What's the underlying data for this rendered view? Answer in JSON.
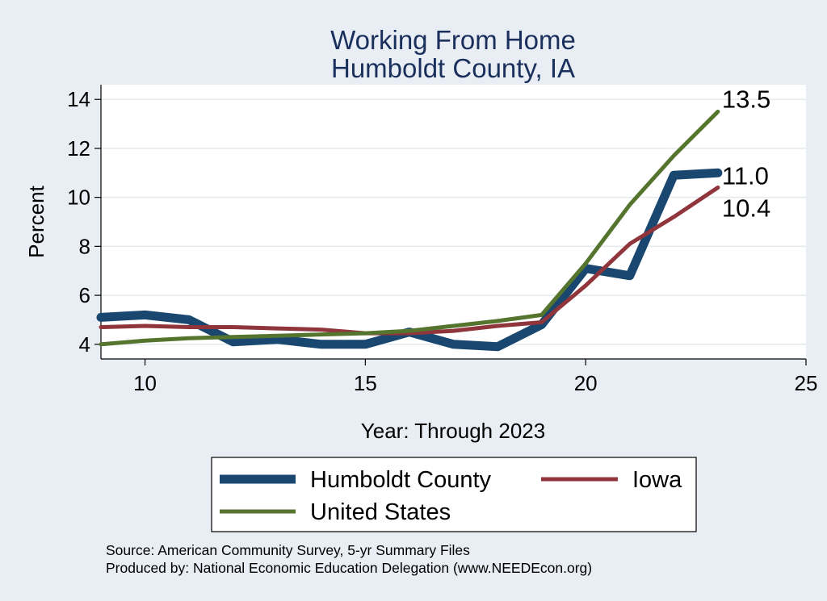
{
  "chart_data": {
    "type": "line",
    "title": [
      "Working From Home",
      "Humboldt County, IA"
    ],
    "xlabel": "Year: Through 2023",
    "ylabel": "Percent",
    "xlim": [
      9,
      25
    ],
    "ylim": [
      3.4,
      14.6
    ],
    "xticks": [
      10,
      15,
      20,
      25
    ],
    "yticks": [
      4,
      6,
      8,
      10,
      12,
      14
    ],
    "grid": true,
    "legend_position": "bottom",
    "series": [
      {
        "name": "Humboldt County",
        "color": "#1a476f",
        "x": [
          9,
          10,
          11,
          12,
          13,
          14,
          15,
          16,
          17,
          18,
          19,
          20,
          21,
          22,
          23
        ],
        "y": [
          5.1,
          5.2,
          5.0,
          4.1,
          4.2,
          4.0,
          4.0,
          4.5,
          4.0,
          3.9,
          4.8,
          7.1,
          6.8,
          10.9,
          11.0
        ]
      },
      {
        "name": "Iowa",
        "color": "#90353b",
        "x": [
          9,
          10,
          11,
          12,
          13,
          14,
          15,
          16,
          17,
          18,
          19,
          20,
          21,
          22,
          23
        ],
        "y": [
          4.7,
          4.75,
          4.7,
          4.7,
          4.65,
          4.6,
          4.45,
          4.45,
          4.55,
          4.75,
          4.9,
          6.4,
          8.1,
          9.2,
          10.4
        ]
      },
      {
        "name": "United States",
        "color": "#55752f",
        "x": [
          9,
          10,
          11,
          12,
          13,
          14,
          15,
          16,
          17,
          18,
          19,
          20,
          21,
          22,
          23
        ],
        "y": [
          4.0,
          4.15,
          4.25,
          4.3,
          4.35,
          4.4,
          4.45,
          4.55,
          4.75,
          4.95,
          5.2,
          7.3,
          9.7,
          11.7,
          13.5
        ]
      }
    ],
    "end_labels": [
      {
        "series": "United States",
        "text": "13.5"
      },
      {
        "series": "Humboldt County",
        "text": "11.0"
      },
      {
        "series": "Iowa",
        "text": "10.4"
      }
    ]
  },
  "notes": {
    "source": "Source: American Community Survey, 5-yr Summary Files",
    "produced_by": "Produced by: National Economic Education Delegation (www.NEEDEcon.org)"
  }
}
